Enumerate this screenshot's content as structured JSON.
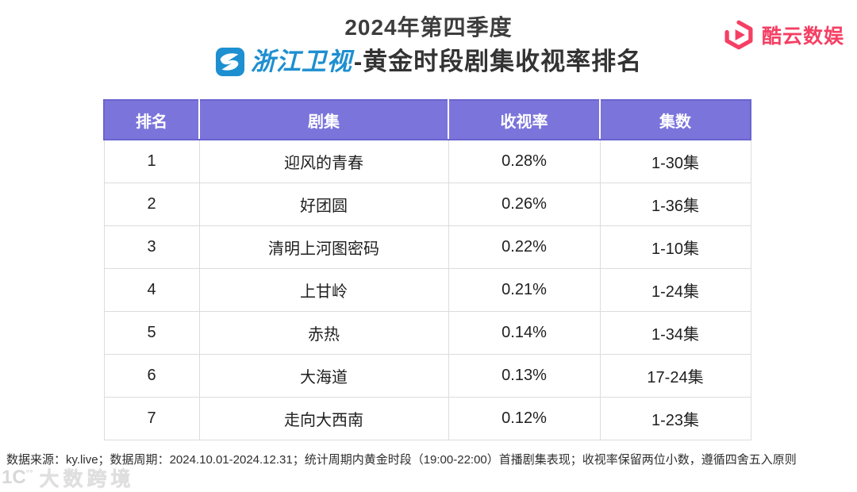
{
  "header": {
    "title_line1": "2024年第四季度",
    "channel_name": "浙江卫视",
    "title_line2_rest": "-黄金时段剧集收视率排名",
    "brand_name": "酷云数娱"
  },
  "icons": {
    "channel": "zjtv-logo-icon",
    "brand": "kuyun-hexagon-play-icon",
    "watermark": "dashu-kuajing-logo-icon"
  },
  "colors": {
    "header_purple": "#7b74db",
    "header_purple_dark": "#6a63cf",
    "channel_blue": "#1e8fd0",
    "brand_red": "#f53f63",
    "table_border_gray": "#dcdcdc",
    "title_dark": "#3d3d3d"
  },
  "chart_data": {
    "type": "table",
    "title": "2024年第四季度 浙江卫视-黄金时段剧集收视率排名",
    "columns": [
      "排名",
      "剧集",
      "收视率",
      "集数"
    ],
    "rows": [
      [
        "1",
        "迎风的青春",
        "0.28%",
        "1-30集"
      ],
      [
        "2",
        "好团圆",
        "0.26%",
        "1-36集"
      ],
      [
        "3",
        "清明上河图密码",
        "0.22%",
        "1-10集"
      ],
      [
        "4",
        "上甘岭",
        "0.21%",
        "1-24集"
      ],
      [
        "5",
        "赤热",
        "0.14%",
        "1-34集"
      ],
      [
        "6",
        "大海道",
        "0.13%",
        "17-24集"
      ],
      [
        "7",
        "走向大西南",
        "0.12%",
        "1-23集"
      ]
    ],
    "ratings_percent": [
      0.28,
      0.26,
      0.22,
      0.21,
      0.14,
      0.13,
      0.12
    ]
  },
  "footer": {
    "note": "数据来源：ky.live；数据周期：2024.10.01-2024.12.31；统计周期内黄金时段（19:00-22:00）首播剧集表现；收视率保留两位小数，遵循四舍五入原则"
  },
  "watermark": {
    "text": "大数跨境"
  }
}
